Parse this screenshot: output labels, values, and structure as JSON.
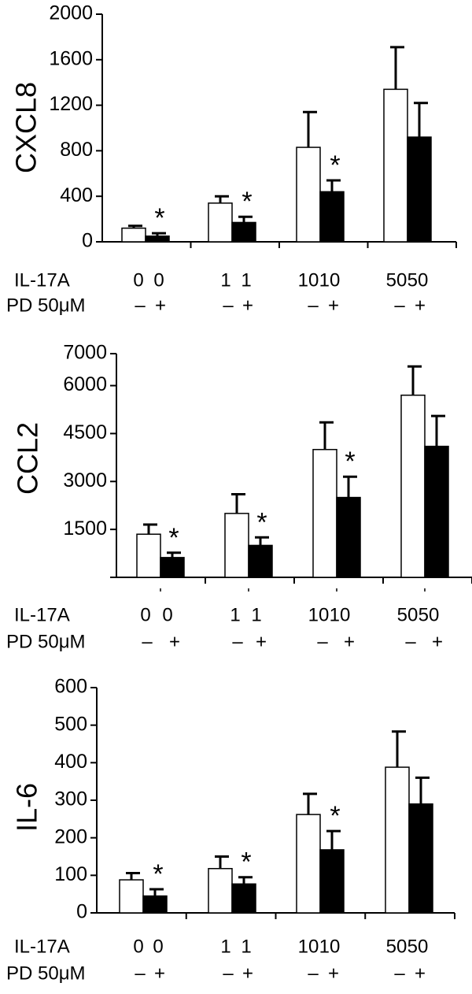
{
  "chart_data": [
    {
      "type": "bar",
      "ylabel": "CXCL8",
      "ylim": [
        0,
        2000
      ],
      "yticks": [
        0,
        400,
        800,
        1200,
        1600,
        2000
      ],
      "row_labels": [
        "IL-17A",
        "PD 50μM"
      ],
      "il17a_labels": [
        "0",
        "0",
        "1",
        "1",
        "10",
        "10",
        "50",
        "50"
      ],
      "pd_labels": [
        "–",
        "+",
        "–",
        "+",
        "–",
        "+",
        "–",
        "+"
      ],
      "series": [
        {
          "name": "PD –",
          "color": "#ffffff",
          "values": [
            120,
            340,
            830,
            1340
          ],
          "errors": [
            20,
            60,
            310,
            370
          ]
        },
        {
          "name": "PD +",
          "color": "#000000",
          "values": [
            50,
            170,
            440,
            920
          ],
          "errors": [
            25,
            50,
            100,
            300
          ]
        }
      ],
      "significance": [
        "*",
        "*",
        "*",
        ""
      ]
    },
    {
      "type": "bar",
      "ylabel": "CCL2",
      "ylim": [
        0,
        7000
      ],
      "yticks": [
        1500,
        3000,
        4500,
        6000,
        7000
      ],
      "row_labels": [
        "IL-17A",
        "PD 50μM"
      ],
      "il17a_labels": [
        "0",
        "0",
        "1",
        "1",
        "10",
        "10",
        "50",
        "50"
      ],
      "pd_labels": [
        "–",
        "+",
        "–",
        "+",
        "–",
        "+",
        "–",
        "+"
      ],
      "series": [
        {
          "name": "PD –",
          "color": "#ffffff",
          "values": [
            1350,
            2000,
            4000,
            5700
          ],
          "errors": [
            300,
            600,
            850,
            900
          ]
        },
        {
          "name": "PD +",
          "color": "#000000",
          "values": [
            620,
            1000,
            2500,
            4100
          ],
          "errors": [
            150,
            250,
            650,
            950
          ]
        }
      ],
      "significance": [
        "*",
        "*",
        "*",
        ""
      ]
    },
    {
      "type": "bar",
      "ylabel": "IL-6",
      "ylim": [
        0,
        600
      ],
      "yticks": [
        0,
        100,
        200,
        300,
        400,
        500,
        600
      ],
      "row_labels": [
        "IL-17A",
        "PD 50μM"
      ],
      "il17a_labels": [
        "0",
        "0",
        "1",
        "1",
        "10",
        "10",
        "50",
        "50"
      ],
      "pd_labels": [
        "–",
        "+",
        "–",
        "+",
        "–",
        "+",
        "–",
        "+"
      ],
      "series": [
        {
          "name": "PD –",
          "color": "#ffffff",
          "values": [
            88,
            118,
            262,
            388
          ],
          "errors": [
            18,
            32,
            55,
            95
          ]
        },
        {
          "name": "PD +",
          "color": "#000000",
          "values": [
            45,
            77,
            168,
            290
          ],
          "errors": [
            18,
            18,
            50,
            70
          ]
        }
      ],
      "significance": [
        "*",
        "*",
        "*",
        ""
      ]
    }
  ]
}
